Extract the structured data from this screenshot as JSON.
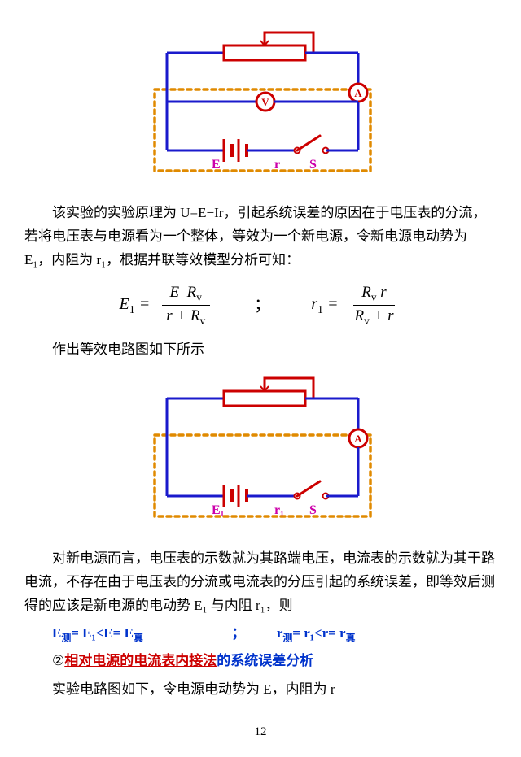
{
  "circuit1": {
    "colors": {
      "wire": "#1a1acc",
      "component": "#cc0000",
      "dotted": "#e08a00",
      "label": "#cc00aa",
      "meter_fill": "#ffffff"
    },
    "labels": {
      "E": "E",
      "r": "r",
      "S": "S",
      "V": "V",
      "A": "A"
    },
    "has_voltmeter": true,
    "wire_width": 3,
    "comp_width": 3,
    "dotted_width": 3.5
  },
  "para1": "该实验的实验原理为 U=E−Ir，引起系统误差的原因在于电压表的分流，若将电压表与电源看为一个整体，等效为一个新电源，令新电源电动势为 E₁，内阻为 r₁，根据并联等效模型分析可知：",
  "eq": {
    "lhs1": "E",
    "sub1": "1",
    "num1a": "E",
    "num1b": "R",
    "num1sub": "v",
    "den1a": "r",
    "den1b": "R",
    "den1sub": "v",
    "sep": "；",
    "lhs2": "r",
    "sub2": "1",
    "num2a": "R",
    "num2sub": "v",
    "num2b": "r",
    "den2a": "R",
    "den2sub": "v",
    "den2b": "r"
  },
  "para2": "作出等效电路图如下所示",
  "circuit2": {
    "colors": {
      "wire": "#1a1acc",
      "component": "#cc0000",
      "dotted": "#e08a00",
      "label": "#cc00aa",
      "meter_fill": "#ffffff"
    },
    "labels": {
      "E": "E₁",
      "r": "r₁",
      "S": "S",
      "A": "A"
    },
    "has_voltmeter": false,
    "wire_width": 3,
    "comp_width": 3,
    "dotted_width": 3.5
  },
  "para3": "对新电源而言，电压表的示数就为其路端电压，电流表的示数就为其干路电流，不存在由于电压表的分流或电流表的分压引起的系统误差，即等效后测得的应该是新电源的电动势 E₁ 与内阻 r₁，则",
  "annot": {
    "left_pre": "E",
    "left_sub1": "测",
    "left_mid": "= E₁<E= E",
    "left_sub2": "真",
    "sep": "；",
    "right_pre": "r",
    "right_sub1": "测",
    "right_mid": "= r₁<r= r",
    "right_sub2": "真"
  },
  "line5": {
    "prefix": "②",
    "red": "相对电源的电流表内接法",
    "rest": "的系统误差分析"
  },
  "para4": "实验电路图如下，令电源电动势为 E，内阻为 r",
  "page": "12"
}
